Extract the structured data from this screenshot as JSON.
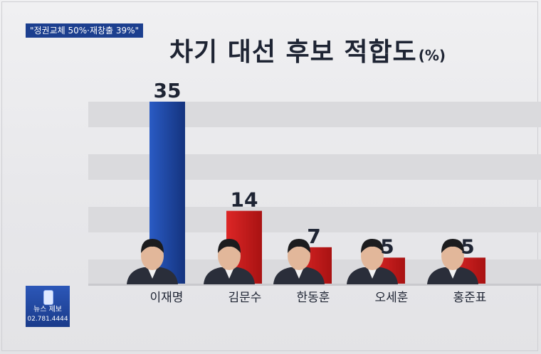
{
  "headline": "\"정권교체 50%·재창출 39%\"",
  "tip_box": {
    "label": "뉴스 제보",
    "phone": "02.781.4444"
  },
  "chart_data": {
    "type": "bar",
    "title": "차기 대선 후보 적합도",
    "unit": "(%)",
    "categories": [
      "이재명",
      "김문수",
      "한동훈",
      "오세훈",
      "홍준표"
    ],
    "values": [
      35,
      14,
      7,
      5,
      5
    ],
    "ylim": [
      0,
      35
    ],
    "grid": true,
    "bar_colors": [
      "#1d47a5",
      "#cc1c1c",
      "#cc1c1c",
      "#cc1c1c",
      "#cc1c1c"
    ]
  }
}
